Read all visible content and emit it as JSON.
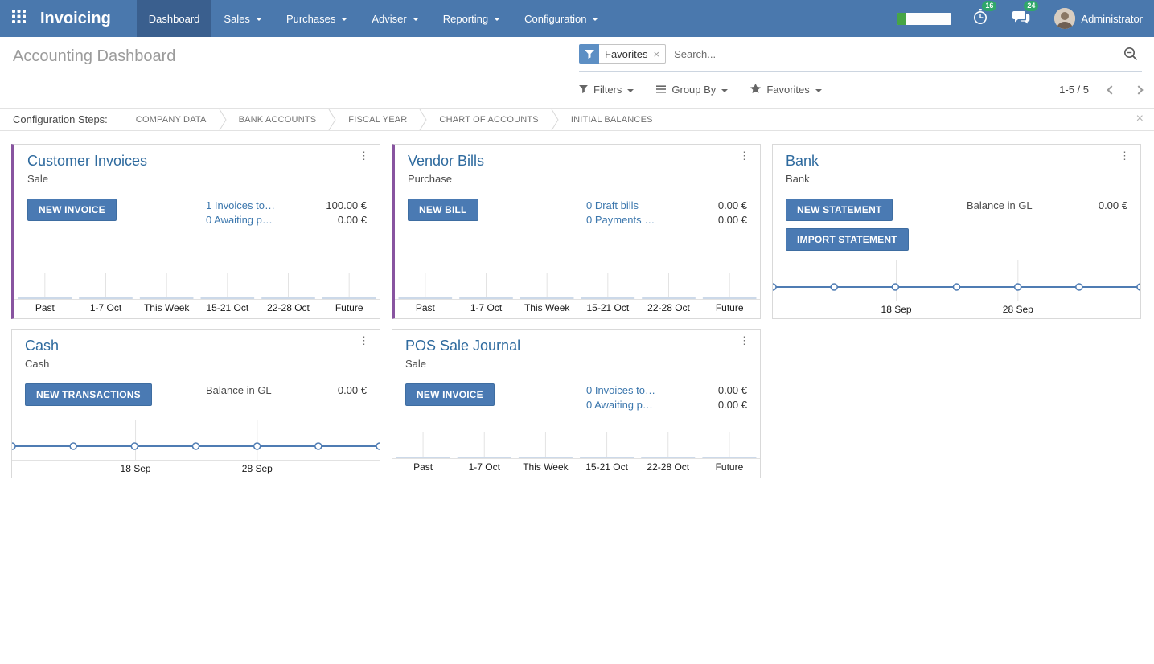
{
  "navbar": {
    "brand": "Invoicing",
    "items": [
      {
        "label": "Dashboard",
        "active": true,
        "caret": false
      },
      {
        "label": "Sales",
        "active": false,
        "caret": true
      },
      {
        "label": "Purchases",
        "active": false,
        "caret": true
      },
      {
        "label": "Adviser",
        "active": false,
        "caret": true
      },
      {
        "label": "Reporting",
        "active": false,
        "caret": true
      },
      {
        "label": "Configuration",
        "active": false,
        "caret": true
      }
    ],
    "activities_badge": "16",
    "messages_badge": "24",
    "user_name": "Administrator"
  },
  "control_panel": {
    "title": "Accounting Dashboard",
    "search_facet": "Favorites",
    "search_placeholder": "Search...",
    "filters_label": "Filters",
    "group_by_label": "Group By",
    "favorites_label": "Favorites",
    "pager": "1-5 / 5"
  },
  "config_steps": {
    "label": "Configuration Steps:",
    "steps": [
      "COMPANY DATA",
      "BANK ACCOUNTS",
      "FISCAL YEAR",
      "CHART OF ACCOUNTS",
      "INITIAL BALANCES"
    ]
  },
  "cards": [
    {
      "title": "Customer Invoices",
      "subtitle": "Sale",
      "accent": true,
      "buttons": [
        "NEW INVOICE"
      ],
      "stats": [
        {
          "label": "1 Invoices to…",
          "link": true,
          "amount": "100.00 €"
        },
        {
          "label": "0 Awaiting p…",
          "link": true,
          "amount": "0.00 €"
        }
      ],
      "chart": {
        "type": "bar",
        "categories": [
          "Past",
          "1-7 Oct",
          "This Week",
          "15-21 Oct",
          "22-28 Oct",
          "Future"
        ],
        "values": [
          0,
          0,
          0,
          0,
          0,
          0
        ]
      }
    },
    {
      "title": "Vendor Bills",
      "subtitle": "Purchase",
      "accent": true,
      "buttons": [
        "NEW BILL"
      ],
      "stats": [
        {
          "label": "0 Draft bills",
          "link": true,
          "amount": "0.00 €"
        },
        {
          "label": "0 Payments …",
          "link": true,
          "amount": "0.00 €"
        }
      ],
      "chart": {
        "type": "bar",
        "categories": [
          "Past",
          "1-7 Oct",
          "This Week",
          "15-21 Oct",
          "22-28 Oct",
          "Future"
        ],
        "values": [
          0,
          0,
          0,
          0,
          0,
          0
        ]
      }
    },
    {
      "title": "Bank",
      "subtitle": "Bank",
      "accent": false,
      "buttons": [
        "NEW STATEMENT",
        "IMPORT STATEMENT"
      ],
      "stats": [
        {
          "label": "Balance in GL",
          "link": false,
          "amount": "0.00 €"
        }
      ],
      "chart": {
        "type": "line",
        "tick_labels": [
          "18 Sep",
          "28 Sep"
        ],
        "tick_positions": [
          0.336,
          0.667
        ],
        "points": 7,
        "values": [
          0,
          0,
          0,
          0,
          0,
          0,
          0
        ]
      }
    },
    {
      "title": "Cash",
      "subtitle": "Cash",
      "accent": false,
      "buttons": [
        "NEW TRANSACTIONS"
      ],
      "stats": [
        {
          "label": "Balance in GL",
          "link": false,
          "amount": "0.00 €"
        }
      ],
      "chart": {
        "type": "line",
        "tick_labels": [
          "18 Sep",
          "28 Sep"
        ],
        "tick_positions": [
          0.336,
          0.667
        ],
        "points": 7,
        "values": [
          0,
          0,
          0,
          0,
          0,
          0,
          0
        ]
      }
    },
    {
      "title": "POS Sale Journal",
      "subtitle": "Sale",
      "accent": false,
      "buttons": [
        "NEW INVOICE"
      ],
      "stats": [
        {
          "label": "0 Invoices to…",
          "link": true,
          "amount": "0.00 €"
        },
        {
          "label": "0 Awaiting p…",
          "link": true,
          "amount": "0.00 €"
        }
      ],
      "chart": {
        "type": "bar",
        "categories": [
          "Past",
          "1-7 Oct",
          "This Week",
          "15-21 Oct",
          "22-28 Oct",
          "Future"
        ],
        "values": [
          0,
          0,
          0,
          0,
          0,
          0
        ]
      }
    }
  ],
  "colors": {
    "navbar": "#4a78ad",
    "navbar_active": "#3a5f8e",
    "accent_purple": "#8854a0",
    "button_blue": "#4a7ab3",
    "link_blue": "#3c77ad",
    "badge_green": "#30a76a",
    "progress_green": "#46a546",
    "chart_line": "#4f7cb3",
    "chart_bar": "#ccd9e9",
    "grid_line": "#e3e3e3"
  }
}
